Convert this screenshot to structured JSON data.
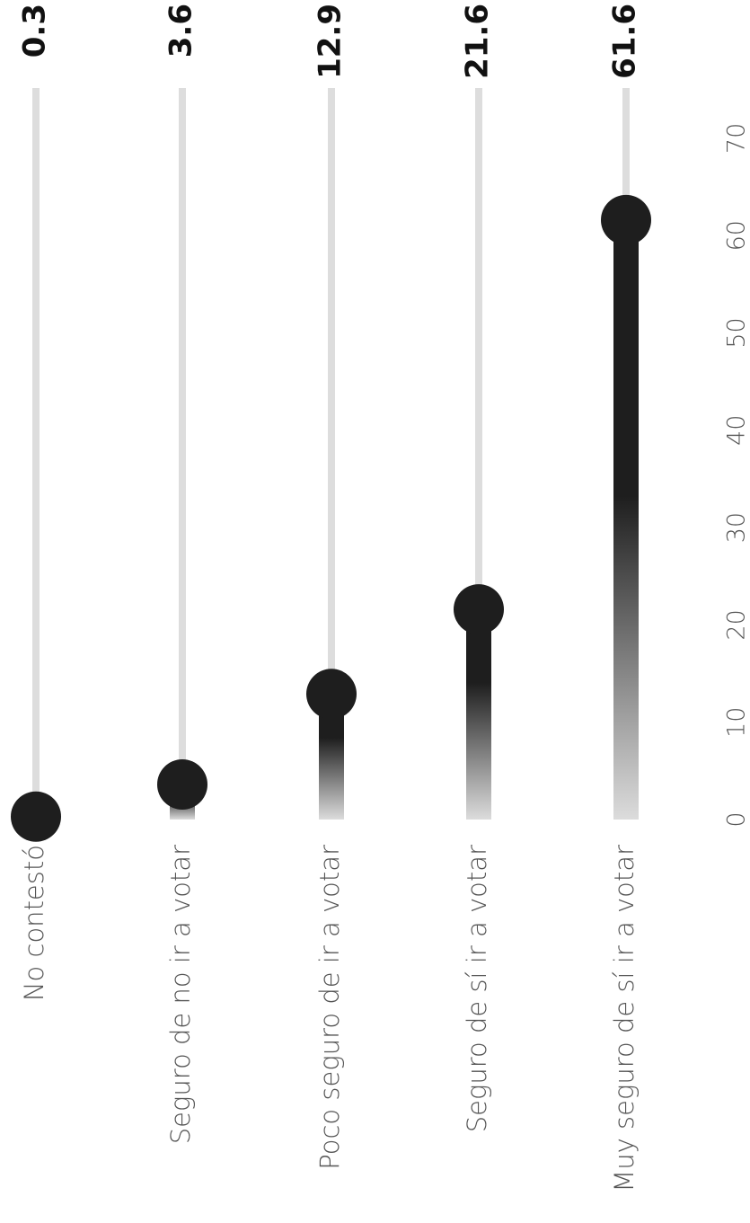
{
  "chart_data": {
    "type": "bar",
    "orientation": "vertical-lollipop",
    "categories": [
      "No contestó",
      "Seguro de no ir a votar",
      "Poco seguro de ir a votar",
      "Seguro de sí ir a votar",
      "Muy seguro de sí ir a votar"
    ],
    "values": [
      0.3,
      3.6,
      12.9,
      21.6,
      61.6
    ],
    "value_labels": [
      "0.3",
      "3.6",
      "12.9",
      "21.6",
      "61.6"
    ],
    "ylim": [
      0,
      70
    ],
    "yticks": [
      0,
      10,
      20,
      30,
      40,
      50,
      60,
      70
    ],
    "ytick_labels": [
      "0",
      "10",
      "20",
      "30",
      "40",
      "50",
      "60",
      "70"
    ],
    "title": "",
    "xlabel": "",
    "ylabel": "",
    "grid": false,
    "legend": "none",
    "colors": {
      "track": "#dddddd",
      "bar": "#1e1e1e",
      "fade": "#dcdcdc",
      "text": "#555555",
      "value_text": "#111111"
    }
  }
}
